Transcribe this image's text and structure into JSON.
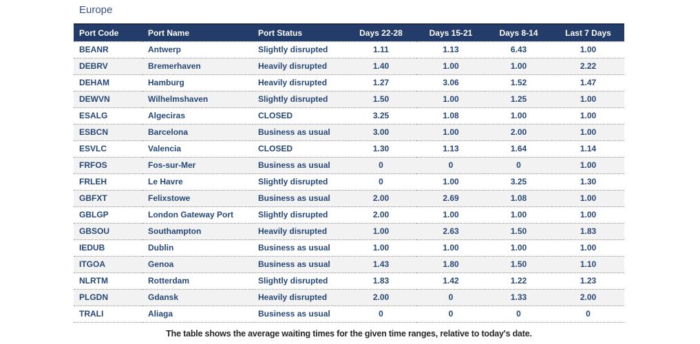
{
  "page": {
    "title": "Europe",
    "footnote": "The table shows the average waiting times for the given time ranges, relative to today's date."
  },
  "colors": {
    "header_bg": "#233C69",
    "header_text": "#FFFFFF",
    "cell_text": "#274876",
    "row_alt_bg": "#F2F2F2",
    "title_text": "#33548C",
    "divider_dotted": "#8F8F8F",
    "footnote_text": "#262626"
  },
  "table": {
    "columns": [
      "Port Code",
      "Port Name",
      "Port Status",
      "Days 22-28",
      "Days 15-21",
      "Days 8-14",
      "Last 7 Days"
    ],
    "rows": [
      {
        "code": "BEANR",
        "name": "Antwerp",
        "status": "Slightly disrupted",
        "d1": "1.11",
        "d2": "1.13",
        "d3": "6.43",
        "d4": "1.00"
      },
      {
        "code": "DEBRV",
        "name": "Bremerhaven",
        "status": "Heavily disrupted",
        "d1": "1.40",
        "d2": "1.00",
        "d3": "1.00",
        "d4": "2.22"
      },
      {
        "code": "DEHAM",
        "name": "Hamburg",
        "status": "Heavily disrupted",
        "d1": "1.27",
        "d2": "3.06",
        "d3": "1.52",
        "d4": "1.47"
      },
      {
        "code": "DEWVN",
        "name": "Wilhelmshaven",
        "status": "Slightly disrupted",
        "d1": "1.50",
        "d2": "1.00",
        "d3": "1.25",
        "d4": "1.00"
      },
      {
        "code": "ESALG",
        "name": "Algeciras",
        "status": "CLOSED",
        "d1": "3.25",
        "d2": "1.08",
        "d3": "1.00",
        "d4": "1.00"
      },
      {
        "code": "ESBCN",
        "name": "Barcelona",
        "status": "Business as usual",
        "d1": "3.00",
        "d2": "1.00",
        "d3": "2.00",
        "d4": "1.00"
      },
      {
        "code": "ESVLC",
        "name": "Valencia",
        "status": "CLOSED",
        "d1": "1.30",
        "d2": "1.13",
        "d3": "1.64",
        "d4": "1.14"
      },
      {
        "code": "FRFOS",
        "name": "Fos-sur-Mer",
        "status": "Business as usual",
        "d1": "0",
        "d2": "0",
        "d3": "0",
        "d4": "1.00"
      },
      {
        "code": "FRLEH",
        "name": "Le Havre",
        "status": "Slightly disrupted",
        "d1": "0",
        "d2": "1.00",
        "d3": "3.25",
        "d4": "1.30"
      },
      {
        "code": "GBFXT",
        "name": "Felixstowe",
        "status": "Business as usual",
        "d1": "2.00",
        "d2": "2.69",
        "d3": "1.08",
        "d4": "1.00"
      },
      {
        "code": "GBLGP",
        "name": "London Gateway Port",
        "status": "Slightly disrupted",
        "d1": "2.00",
        "d2": "1.00",
        "d3": "1.00",
        "d4": "1.00"
      },
      {
        "code": "GBSOU",
        "name": "Southampton",
        "status": "Heavily disrupted",
        "d1": "1.00",
        "d2": "2.63",
        "d3": "1.50",
        "d4": "1.83"
      },
      {
        "code": "IEDUB",
        "name": "Dublin",
        "status": "Business as usual",
        "d1": "1.00",
        "d2": "1.00",
        "d3": "1.00",
        "d4": "1.00"
      },
      {
        "code": "ITGOA",
        "name": "Genoa",
        "status": "Business as usual",
        "d1": "1.43",
        "d2": "1.80",
        "d3": "1.50",
        "d4": "1.10"
      },
      {
        "code": "NLRTM",
        "name": "Rotterdam",
        "status": "Slightly disrupted",
        "d1": "1.83",
        "d2": "1.42",
        "d3": "1.22",
        "d4": "1.23"
      },
      {
        "code": "PLGDN",
        "name": "Gdansk",
        "status": "Heavily disrupted",
        "d1": "2.00",
        "d2": "0",
        "d3": "1.33",
        "d4": "2.00"
      },
      {
        "code": "TRALI",
        "name": "Aliaga",
        "status": "Business as usual",
        "d1": "0",
        "d2": "0",
        "d3": "0",
        "d4": "0"
      }
    ]
  },
  "chart_data": {
    "type": "table",
    "title": "Europe",
    "columns": [
      "Port Code",
      "Port Name",
      "Port Status",
      "Days 22-28",
      "Days 15-21",
      "Days 8-14",
      "Last 7 Days"
    ],
    "note": "The table shows the average waiting times for the given time ranges, relative to today's date."
  }
}
